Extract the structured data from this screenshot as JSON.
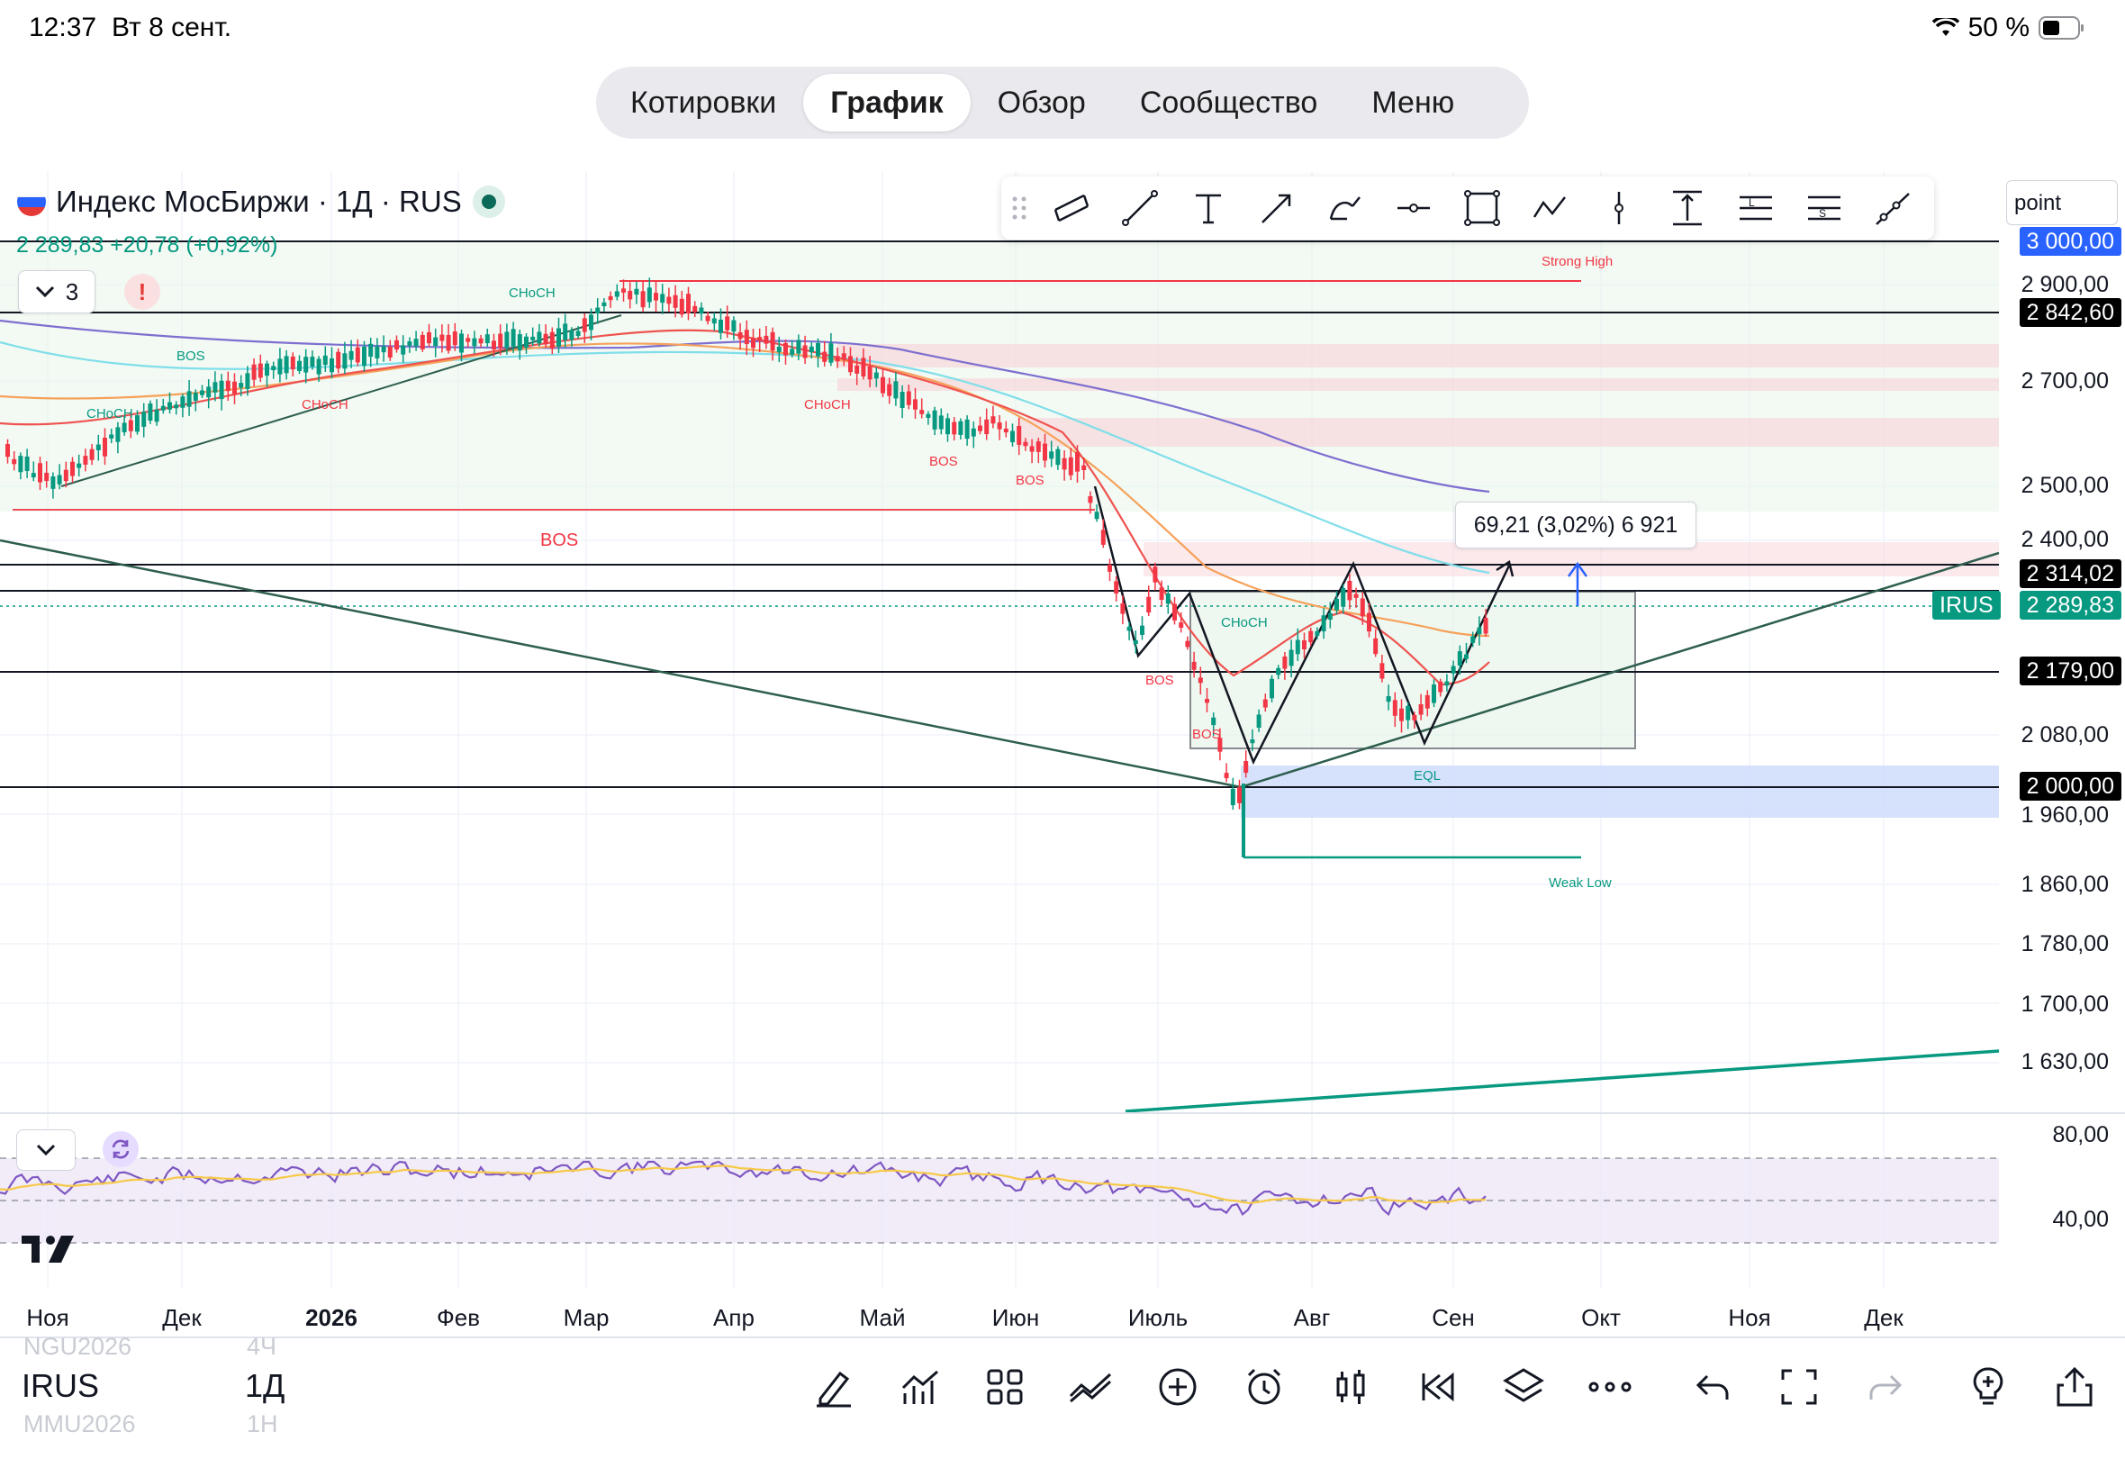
{
  "status_bar": {
    "time": "12:37",
    "date": "Вт 8 сент.",
    "battery": "50 %"
  },
  "nav": {
    "tabs": [
      "Котировки",
      "График",
      "Обзор",
      "Сообщество",
      "Меню"
    ],
    "active": "График"
  },
  "legend": {
    "symbol_line": "Индекс МосБиржи · 1Д · RUS",
    "price_line": "2 289,83  +20,78 (+0,92%)",
    "indicator_count": "3",
    "alert": "!"
  },
  "toolbar": {
    "point_field": "point"
  },
  "price_axis": {
    "ticks": [
      "2 900,00",
      "2 700,00",
      "2 500,00",
      "2 400,00",
      "2 080,00",
      "1 960,00",
      "1 860,00",
      "1 780,00",
      "1 700,00",
      "1 630,00"
    ],
    "labels": {
      "top": "3 000,00",
      "resistance": "2 842,60",
      "level_2314": "2 314,02",
      "current": "2 289,83",
      "level_2179": "2 179,00",
      "level_2000": "2 000,00"
    },
    "symbol_tag": "IRUS"
  },
  "annotations": {
    "measure": "69,21 (3,02%) 6 921",
    "strong_high": "Strong High",
    "weak_low": "Weak Low",
    "eql": "EQL",
    "bos": "BOS",
    "choch": "CHoCH"
  },
  "rsi_axis": {
    "ticks": [
      "80,00",
      "40,00"
    ]
  },
  "time_axis": [
    "Ноя",
    "Дек",
    "2026",
    "Фев",
    "Мар",
    "Апр",
    "Май",
    "Июн",
    "Июль",
    "Авг",
    "Сен",
    "Окт",
    "Ноя",
    "Дек"
  ],
  "bottom": {
    "ghost_top_symbol": "NGU2026",
    "ghost_top_tf": "4Ч",
    "symbol": "IRUS",
    "timeframe": "1Д",
    "ghost_bottom_symbol": "MMU2026",
    "ghost_bottom_tf": "1Н"
  },
  "colors": {
    "up": "#089981",
    "down": "#f23645",
    "accent": "#2962ff",
    "rsi": "#7e57c2"
  }
}
